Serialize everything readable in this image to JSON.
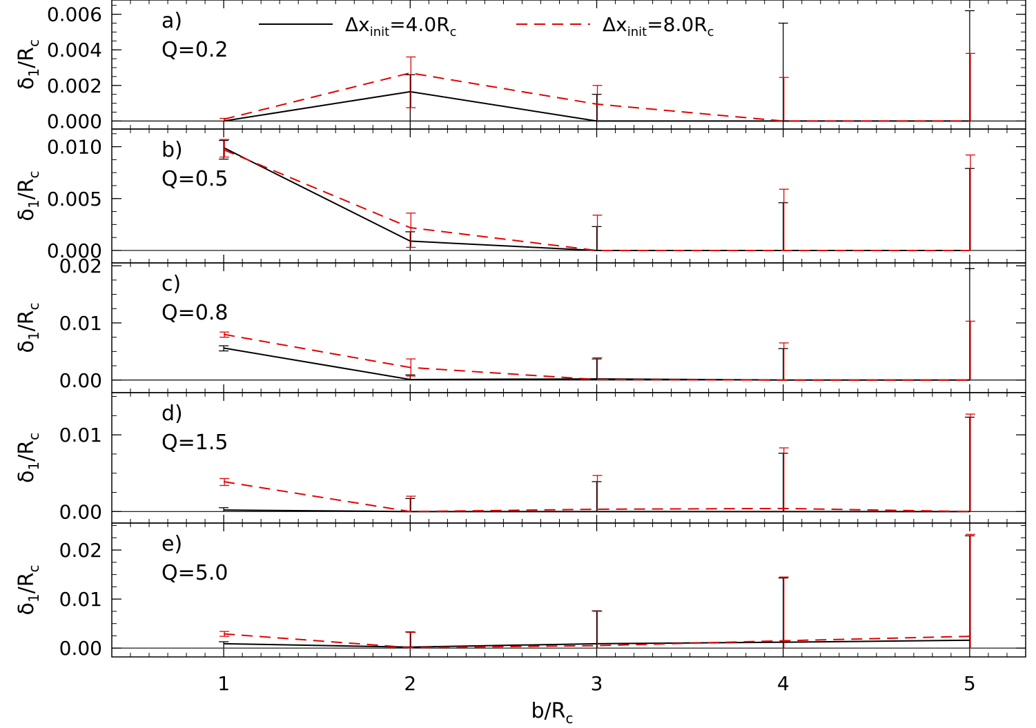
{
  "colors": {
    "axis": "#000000",
    "series_solid": "#000000",
    "series_dashed": "#e00000",
    "background": "#ffffff"
  },
  "legend": {
    "location": "top-center",
    "entries": [
      {
        "series_index": 0,
        "style": "solid",
        "prefix": "Δx",
        "sub": "init",
        "rest": "=4.0R",
        "sub2": "c"
      },
      {
        "series_index": 1,
        "style": "dashed",
        "prefix": "Δx",
        "sub": "init",
        "rest": "=8.0R",
        "sub2": "c"
      }
    ]
  },
  "xaxis": {
    "label_main": "b/R",
    "label_sub": "c",
    "xlim": [
      0.4,
      5.3
    ],
    "ticks": [
      1,
      2,
      3,
      4,
      5
    ]
  },
  "chart_data": [
    {
      "type": "line",
      "panel": "a)",
      "q_label": "Q=0.2",
      "ylabel_main": "δ",
      "ylabel_sub1": "1",
      "ylabel_mid": "/R",
      "ylabel_sub2": "c",
      "ylim": [
        -0.00045,
        0.0068
      ],
      "yticks": [
        0.0,
        0.002,
        0.004,
        0.006
      ],
      "ytick_labels": [
        "0.000",
        "0.002",
        "0.004",
        "0.006"
      ],
      "x": [
        1,
        2,
        3,
        4,
        5
      ],
      "series": [
        {
          "values": [
            0.0,
            0.00165,
            0.0,
            0.0,
            0.0
          ],
          "err_low": [
            0.0,
            0.0,
            0.0,
            0.0,
            0.0
          ],
          "err_high": [
            0.0,
            0.0026,
            0.0015,
            0.0055,
            0.0062
          ]
        },
        {
          "values": [
            0.0001,
            0.0027,
            0.00095,
            0.0,
            0.0
          ],
          "err_low": [
            0.0,
            0.00075,
            0.0,
            0.0,
            0.0
          ],
          "err_high": [
            0.00015,
            0.0036,
            0.002,
            0.00245,
            0.0038
          ]
        }
      ]
    },
    {
      "type": "line",
      "panel": "b)",
      "q_label": "Q=0.5",
      "ylabel_main": "δ",
      "ylabel_sub1": "1",
      "ylabel_mid": "/R",
      "ylabel_sub2": "c",
      "ylim": [
        -0.0012,
        0.0117
      ],
      "yticks": [
        0.0,
        0.005,
        0.01
      ],
      "ytick_labels": [
        "0.000",
        "0.005",
        "0.010"
      ],
      "x": [
        1,
        2,
        3,
        4,
        5
      ],
      "series": [
        {
          "values": [
            0.0099,
            0.0009,
            0.0,
            0.0,
            0.0
          ],
          "err_low": [
            0.0088,
            0.0,
            0.0,
            0.0,
            0.0
          ],
          "err_high": [
            0.0106,
            0.0018,
            0.0023,
            0.0046,
            0.0079
          ]
        },
        {
          "values": [
            0.0097,
            0.0022,
            0.0,
            0.0,
            0.0
          ],
          "err_low": [
            0.009,
            0.0003,
            0.0,
            0.0,
            0.0
          ],
          "err_high": [
            0.0107,
            0.0036,
            0.0034,
            0.0059,
            0.0092
          ]
        }
      ]
    },
    {
      "type": "line",
      "panel": "c)",
      "q_label": "Q=0.8",
      "ylabel_main": "δ",
      "ylabel_sub1": "1",
      "ylabel_mid": "/R",
      "ylabel_sub2": "c",
      "ylim": [
        -0.0022,
        0.0205
      ],
      "yticks": [
        0.0,
        0.01,
        0.02
      ],
      "ytick_labels": [
        "0.00",
        "0.01",
        "0.02"
      ],
      "x": [
        1,
        2,
        3,
        4,
        5
      ],
      "series": [
        {
          "values": [
            0.0056,
            0.0001,
            0.0002,
            0.0,
            0.0
          ],
          "err_low": [
            0.0051,
            0.0,
            0.0,
            0.0,
            0.0
          ],
          "err_high": [
            0.006,
            0.0009,
            0.0037,
            0.0055,
            0.0195
          ]
        },
        {
          "values": [
            0.008,
            0.0022,
            0.0001,
            0.0,
            0.0
          ],
          "err_low": [
            0.0075,
            0.0007,
            0.0,
            0.0,
            0.0
          ],
          "err_high": [
            0.0084,
            0.0037,
            0.0039,
            0.0065,
            0.0103
          ]
        }
      ]
    },
    {
      "type": "line",
      "panel": "d)",
      "q_label": "Q=1.5",
      "ylabel_main": "δ",
      "ylabel_sub1": "1",
      "ylabel_mid": "/R",
      "ylabel_sub2": "c",
      "ylim": [
        -0.0015,
        0.0155
      ],
      "yticks": [
        0.0,
        0.01
      ],
      "ytick_labels": [
        "0.00",
        "0.01"
      ],
      "x": [
        1,
        2,
        3,
        4,
        5
      ],
      "series": [
        {
          "values": [
            0.0002,
            0.0,
            0.0,
            0.0,
            0.0
          ],
          "err_low": [
            0.0,
            0.0,
            0.0,
            0.0,
            0.0
          ],
          "err_high": [
            0.0005,
            0.0017,
            0.0039,
            0.0076,
            0.0123
          ]
        },
        {
          "values": [
            0.0039,
            0.0,
            0.0003,
            0.0004,
            0.0
          ],
          "err_low": [
            0.0034,
            0.0,
            0.0,
            0.0,
            0.0
          ],
          "err_high": [
            0.0043,
            0.002,
            0.0047,
            0.0083,
            0.0127
          ]
        }
      ]
    },
    {
      "type": "line",
      "panel": "e)",
      "q_label": "Q=5.0",
      "ylabel_main": "δ",
      "ylabel_sub1": "1",
      "ylabel_mid": "/R",
      "ylabel_sub2": "c",
      "ylim": [
        -0.0018,
        0.0255
      ],
      "yticks": [
        0.0,
        0.01,
        0.02
      ],
      "ytick_labels": [
        "0.00",
        "0.01",
        "0.02"
      ],
      "x": [
        1,
        2,
        3,
        4,
        5
      ],
      "series": [
        {
          "values": [
            0.0009,
            0.0002,
            0.0009,
            0.0012,
            0.0016
          ],
          "err_low": [
            0.0,
            0.0,
            0.0,
            0.0,
            0.0
          ],
          "err_high": [
            0.0013,
            0.0033,
            0.0076,
            0.0143,
            0.0229
          ]
        },
        {
          "values": [
            0.0029,
            0.0001,
            0.0005,
            0.0015,
            0.0024
          ],
          "err_low": [
            0.0024,
            0.0,
            0.0,
            0.0,
            0.0
          ],
          "err_high": [
            0.0034,
            0.0032,
            0.0075,
            0.0145,
            0.0232
          ]
        }
      ]
    }
  ]
}
